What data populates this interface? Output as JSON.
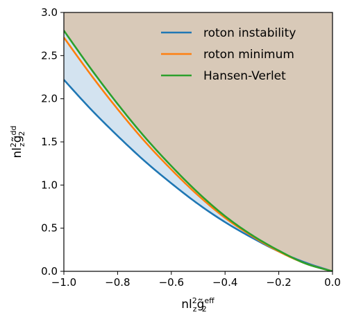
{
  "chart_data": {
    "type": "line",
    "title": "",
    "xlim": [
      -1.0,
      0.0
    ],
    "ylim": [
      0.0,
      3.0
    ],
    "x_ticks": [
      -1.0,
      -0.8,
      -0.6,
      -0.4,
      -0.2,
      0.0
    ],
    "x_tick_labels": [
      "−1.0",
      "−0.8",
      "−0.6",
      "−0.4",
      "−0.2",
      "0.0"
    ],
    "y_ticks": [
      0.0,
      0.5,
      1.0,
      1.5,
      2.0,
      2.5,
      3.0
    ],
    "y_tick_labels": [
      "0.0",
      "0.5",
      "1.0",
      "1.5",
      "2.0",
      "2.5",
      "3.0"
    ],
    "xlabel": {
      "base": "nl",
      "sup1": "2",
      "sub1": "z",
      "mid": "g̃",
      "sup2": "eff",
      "sub2": "2"
    },
    "ylabel": {
      "base": "nl",
      "sup1": "2",
      "sub1": "z",
      "mid": "g̃",
      "sup2": "dd",
      "sub2": "2"
    },
    "legend_position": "top-right",
    "grid": false,
    "x": [
      -1.0,
      -0.9,
      -0.8,
      -0.7,
      -0.6,
      -0.5,
      -0.4,
      -0.3,
      -0.2,
      -0.1,
      0.0
    ],
    "series": [
      {
        "name": "roton instability",
        "color": "#1f77b4",
        "values": [
          2.22,
          1.88,
          1.57,
          1.28,
          1.02,
          0.78,
          0.57,
          0.39,
          0.23,
          0.1,
          0.0
        ]
      },
      {
        "name": "roton minimum",
        "color": "#ff7f0e",
        "values": [
          2.71,
          2.28,
          1.88,
          1.51,
          1.18,
          0.88,
          0.62,
          0.41,
          0.23,
          0.09,
          0.0
        ]
      },
      {
        "name": "Hansen-Verlet",
        "color": "#2ca02c",
        "values": [
          2.79,
          2.35,
          1.94,
          1.56,
          1.22,
          0.91,
          0.64,
          0.42,
          0.24,
          0.09,
          0.0
        ]
      }
    ],
    "fill_colors": {
      "unstable_region": "#d8c9b8",
      "between_region": "#d3e3f0"
    }
  }
}
